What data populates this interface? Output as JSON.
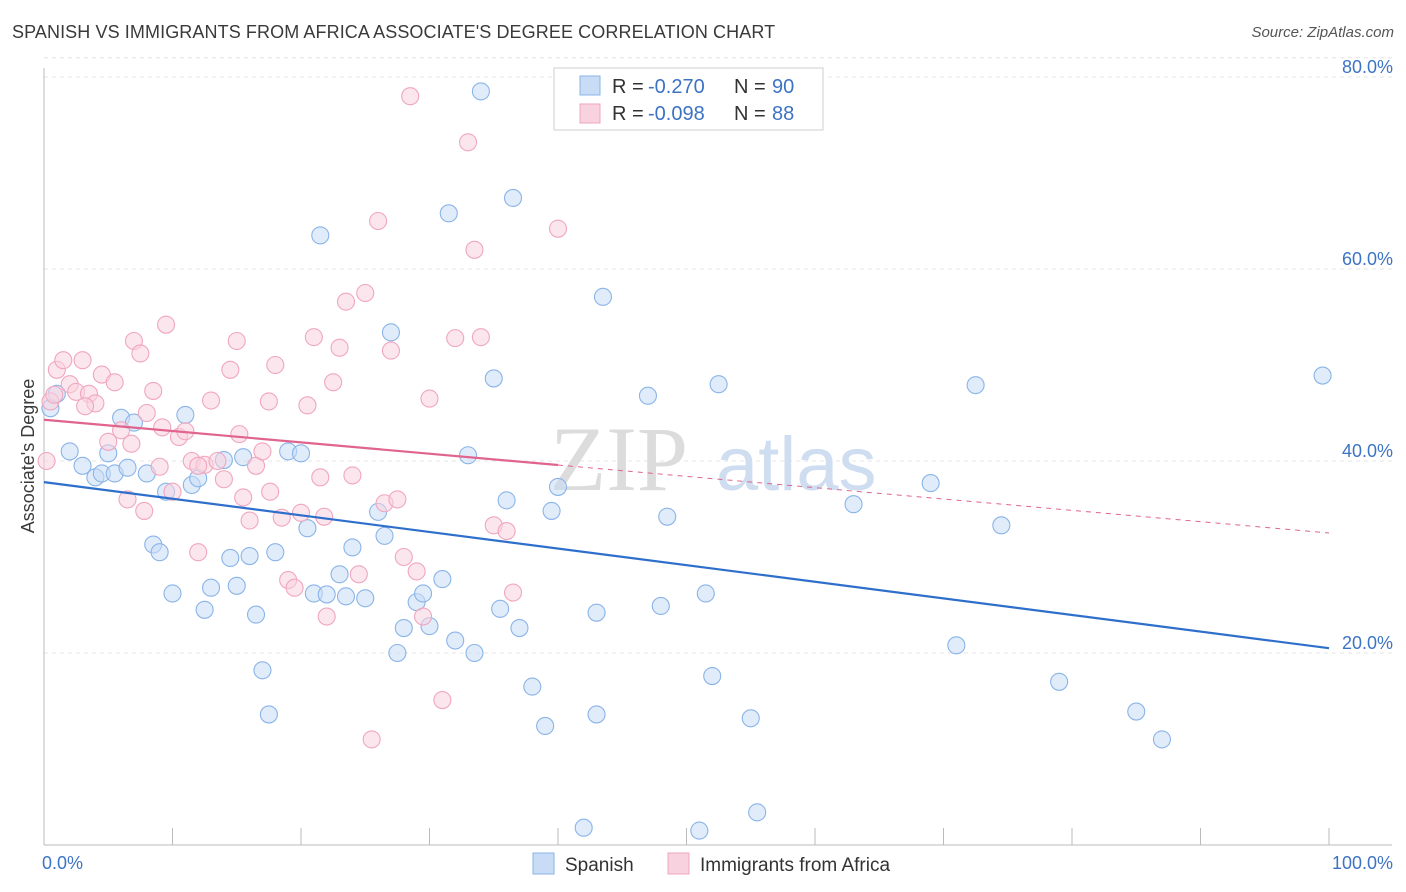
{
  "title": "SPANISH VS IMMIGRANTS FROM AFRICA ASSOCIATE'S DEGREE CORRELATION CHART",
  "source": "Source: ZipAtlas.com",
  "watermark": {
    "zip": "ZIP",
    "atlas": "atlas"
  },
  "chart_data": {
    "type": "scatter",
    "ylabel": "Associate's Degree",
    "xlim": [
      0,
      100
    ],
    "ylim": [
      0,
      82
    ],
    "y_ticks": [
      {
        "value": 20,
        "label": "20.0%"
      },
      {
        "value": 40,
        "label": "40.0%"
      },
      {
        "value": 60,
        "label": "60.0%"
      },
      {
        "value": 80,
        "label": "80.0%"
      }
    ],
    "x_tick_labels": {
      "left": "0.0%",
      "right": "100.0%"
    },
    "legend": [
      {
        "r_label": "R =",
        "r_value": "-0.270",
        "n_label": "N =",
        "n_value": "90"
      },
      {
        "r_label": "R =",
        "r_value": "-0.098",
        "n_label": "N =",
        "n_value": "88"
      }
    ],
    "series": [
      {
        "name": "Spanish",
        "color": "#8ab4e8",
        "fill": "#c9dcf5",
        "line_color": "#2f6fcc",
        "trend": {
          "x0": 0,
          "y0": 37.8,
          "x1": 100,
          "y1": 20.5,
          "solid_to": 100
        },
        "points": [
          [
            0.5,
            45.5
          ],
          [
            1,
            47
          ],
          [
            2,
            41
          ],
          [
            3,
            39.5
          ],
          [
            4,
            38.3
          ],
          [
            4.5,
            38.7
          ],
          [
            5,
            40.8
          ],
          [
            5.5,
            38.7
          ],
          [
            6,
            44.5
          ],
          [
            6.5,
            39.3
          ],
          [
            7,
            44
          ],
          [
            8,
            38.7
          ],
          [
            8.5,
            31.3
          ],
          [
            9,
            30.5
          ],
          [
            9.5,
            36.8
          ],
          [
            10,
            26.2
          ],
          [
            11,
            44.8
          ],
          [
            11.5,
            37.5
          ],
          [
            12,
            38.2
          ],
          [
            12.5,
            24.5
          ],
          [
            13,
            26.8
          ],
          [
            14,
            40.1
          ],
          [
            14.5,
            29.9
          ],
          [
            15,
            27
          ],
          [
            15.5,
            40.4
          ],
          [
            16,
            30.1
          ],
          [
            16.5,
            24
          ],
          [
            17,
            18.2
          ],
          [
            17.5,
            13.6
          ],
          [
            18,
            30.5
          ],
          [
            19,
            41
          ],
          [
            20,
            40.8
          ],
          [
            20.5,
            33
          ],
          [
            21,
            26.2
          ],
          [
            21.5,
            63.5
          ],
          [
            22,
            26.1
          ],
          [
            23,
            28.2
          ],
          [
            23.5,
            25.9
          ],
          [
            24,
            31
          ],
          [
            25,
            25.7
          ],
          [
            26,
            34.7
          ],
          [
            26.5,
            32.2
          ],
          [
            27,
            53.4
          ],
          [
            27.5,
            20
          ],
          [
            28,
            22.6
          ],
          [
            29,
            25.3
          ],
          [
            29.5,
            26.2
          ],
          [
            30,
            22.8
          ],
          [
            31,
            27.7
          ],
          [
            31.5,
            65.8
          ],
          [
            32,
            21.3
          ],
          [
            33,
            40.6
          ],
          [
            33.5,
            20
          ],
          [
            34,
            78.5
          ],
          [
            35,
            48.6
          ],
          [
            35.5,
            24.6
          ],
          [
            36,
            35.9
          ],
          [
            36.5,
            67.4
          ],
          [
            37,
            22.6
          ],
          [
            38,
            16.5
          ],
          [
            39,
            12.4
          ],
          [
            39.5,
            34.8
          ],
          [
            40,
            37.3
          ],
          [
            42,
            1.8
          ],
          [
            43,
            13.6
          ],
          [
            43,
            24.2
          ],
          [
            43.5,
            57.1
          ],
          [
            47,
            46.8
          ],
          [
            48,
            24.9
          ],
          [
            48.5,
            34.2
          ],
          [
            51,
            1.5
          ],
          [
            51.5,
            26.2
          ],
          [
            52,
            17.6
          ],
          [
            52.5,
            48
          ],
          [
            55,
            13.2
          ],
          [
            55.5,
            3.4
          ],
          [
            63,
            35.5
          ],
          [
            69,
            37.7
          ],
          [
            71,
            20.8
          ],
          [
            72.5,
            47.9
          ],
          [
            74.5,
            33.3
          ],
          [
            79,
            17
          ],
          [
            85,
            13.9
          ],
          [
            87,
            11
          ],
          [
            99.5,
            48.9
          ]
        ]
      },
      {
        "name": "Immigrants from Africa",
        "color": "#f0a6bf",
        "fill": "#f9d2df",
        "line_color": "#e0648e",
        "trend": {
          "x0": 0,
          "y0": 44.3,
          "x1": 100,
          "y1": 32.5,
          "solid_to": 40
        },
        "points": [
          [
            0.2,
            40
          ],
          [
            0.5,
            46.2
          ],
          [
            1,
            49.5
          ],
          [
            1.5,
            50.5
          ],
          [
            2,
            48
          ],
          [
            2.5,
            47.2
          ],
          [
            3,
            50.5
          ],
          [
            3.5,
            47
          ],
          [
            4,
            46
          ],
          [
            4.5,
            49
          ],
          [
            5,
            42
          ],
          [
            5.5,
            48.2
          ],
          [
            6,
            43.2
          ],
          [
            6.5,
            36
          ],
          [
            7,
            52.5
          ],
          [
            7.5,
            51.2
          ],
          [
            7.8,
            34.8
          ],
          [
            8,
            45
          ],
          [
            8.5,
            47.3
          ],
          [
            9,
            39.4
          ],
          [
            9.5,
            54.2
          ],
          [
            10,
            36.8
          ],
          [
            10.5,
            42.5
          ],
          [
            11,
            43.1
          ],
          [
            11.5,
            40
          ],
          [
            12,
            30.5
          ],
          [
            12.5,
            39.6
          ],
          [
            13,
            46.3
          ],
          [
            13.5,
            40
          ],
          [
            14,
            38.1
          ],
          [
            14.5,
            49.5
          ],
          [
            15,
            52.5
          ],
          [
            15.5,
            36.2
          ],
          [
            16,
            33.8
          ],
          [
            16.5,
            39.5
          ],
          [
            17,
            41
          ],
          [
            17.5,
            46.2
          ],
          [
            18,
            50
          ],
          [
            18.5,
            34.1
          ],
          [
            19,
            27.6
          ],
          [
            19.5,
            26.8
          ],
          [
            20,
            34.6
          ],
          [
            20.5,
            45.8
          ],
          [
            21,
            52.9
          ],
          [
            21.5,
            38.3
          ],
          [
            22,
            23.8
          ],
          [
            22.5,
            48.2
          ],
          [
            23,
            51.8
          ],
          [
            23.5,
            56.6
          ],
          [
            24,
            38.5
          ],
          [
            24.5,
            28.2
          ],
          [
            25,
            57.5
          ],
          [
            25.5,
            11
          ],
          [
            26,
            65
          ],
          [
            26.5,
            35.6
          ],
          [
            27,
            51.5
          ],
          [
            27.5,
            36
          ],
          [
            28,
            30
          ],
          [
            28.5,
            78
          ],
          [
            29,
            28.5
          ],
          [
            29.5,
            23.8
          ],
          [
            30,
            46.5
          ],
          [
            31,
            15.1
          ],
          [
            32,
            52.8
          ],
          [
            33,
            73.2
          ],
          [
            33.5,
            62
          ],
          [
            34,
            52.9
          ],
          [
            35,
            33.3
          ],
          [
            36,
            32.7
          ],
          [
            36.5,
            26.3
          ],
          [
            40,
            64.2
          ],
          [
            12,
            39.5
          ],
          [
            17.6,
            36.8
          ],
          [
            21.8,
            34.2
          ],
          [
            9.2,
            43.5
          ],
          [
            3.2,
            45.7
          ],
          [
            0.8,
            46.9
          ],
          [
            6.8,
            41.8
          ],
          [
            15.2,
            42.8
          ]
        ]
      }
    ]
  }
}
